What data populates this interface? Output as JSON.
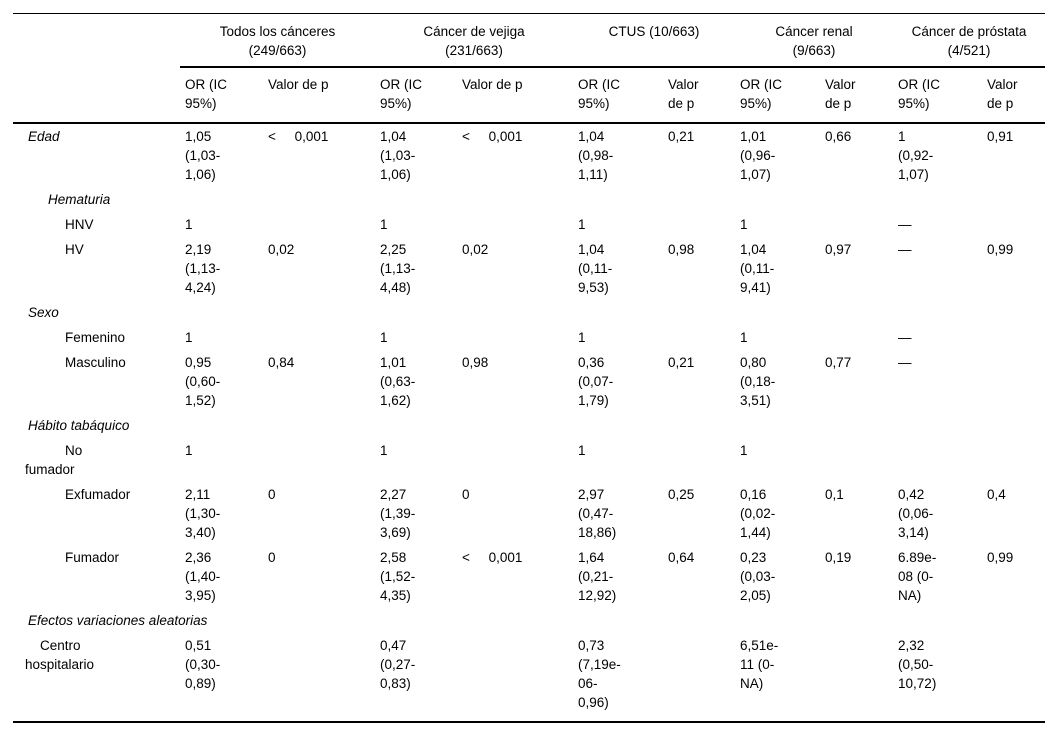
{
  "table": {
    "groups": [
      {
        "label": "Todos los cánceres\n(249/663)",
        "or_header": "OR (IC\n95%)",
        "p_header": "Valor de p"
      },
      {
        "label": "Cáncer de vejiga\n(231/663)",
        "or_header": "OR (IC\n95%)",
        "p_header": "Valor de p"
      },
      {
        "label": "CTUS (10/663)",
        "or_header": "OR (IC\n95%)",
        "p_header": "Valor\nde p"
      },
      {
        "label": "Cáncer renal\n(9/663)",
        "or_header": "OR (IC\n95%)",
        "p_header": "Valor\nde p"
      },
      {
        "label": "Cáncer de próstata\n(4/521)",
        "or_header": "OR (IC\n95%)",
        "p_header": "Valor\nde p"
      }
    ],
    "rows": [
      {
        "label": "Edad",
        "label_style": "section",
        "cells": [
          "1,05\n(1,03-\n1,06)",
          "<     0,001",
          "1,04\n(1,03-\n1,06)",
          "<     0,001",
          "1,04\n(0,98-\n1,11)",
          "0,21",
          "1,01\n(0,96-\n1,07)",
          "0,66",
          "1\n(0,92-\n1,07)",
          "0,91"
        ]
      },
      {
        "label": "Hematuria",
        "label_style": "subsection",
        "cells": [
          "",
          "",
          "",
          "",
          "",
          "",
          "",
          "",
          "",
          ""
        ]
      },
      {
        "label": "HNV",
        "label_style": "item",
        "cells": [
          "1",
          "",
          "1",
          "",
          "1",
          "",
          "1",
          "",
          "—",
          ""
        ]
      },
      {
        "label": "HV",
        "label_style": "item",
        "cells": [
          "2,19\n(1,13-\n4,24)",
          "0,02",
          "2,25\n(1,13-\n4,48)",
          "0,02",
          "1,04\n(0,11-\n9,53)",
          "0,98",
          "1,04\n(0,11-\n9,41)",
          "0,97",
          "—",
          "0,99"
        ]
      },
      {
        "label": "Sexo",
        "label_style": "section",
        "cells": [
          "",
          "",
          "",
          "",
          "",
          "",
          "",
          "",
          "",
          ""
        ]
      },
      {
        "label": "Femenino",
        "label_style": "item",
        "cells": [
          "1",
          "",
          "1",
          "",
          "1",
          "",
          "1",
          "",
          "—",
          ""
        ]
      },
      {
        "label": "Masculino",
        "label_style": "item",
        "cells": [
          "0,95\n(0,60-\n1,52)",
          "0,84",
          "1,01\n(0,63-\n1,62)",
          "0,98",
          "0,36\n(0,07-\n1,79)",
          "0,21",
          "0,80\n(0,18-\n3,51)",
          "0,77",
          "—",
          ""
        ]
      },
      {
        "label": "Hábito tabáquico",
        "label_style": "section",
        "cells": [
          "",
          "",
          "",
          "",
          "",
          "",
          "",
          "",
          "",
          ""
        ]
      },
      {
        "label": "No\nfumador",
        "label_style": "item-wrap-a",
        "cells": [
          "1",
          "",
          "1",
          "",
          "1",
          "",
          "1",
          "",
          "",
          ""
        ]
      },
      {
        "label": "Exfumador",
        "label_style": "item",
        "cells": [
          "2,11\n(1,30-\n3,40)",
          "0",
          "2,27\n(1,39-\n3,69)",
          "0",
          "2,97\n(0,47-\n18,86)",
          "0,25",
          "0,16\n(0,02-\n1,44)",
          "0,1",
          "0,42\n(0,06-\n3,14)",
          "0,4"
        ]
      },
      {
        "label": "Fumador",
        "label_style": "item",
        "cells": [
          "2,36\n(1,40-\n3,95)",
          "0",
          "2,58\n(1,52-\n4,35)",
          "<     0,001",
          "1,64\n(0,21-\n12,92)",
          "0,64",
          "0,23\n(0,03-\n2,05)",
          "0,19",
          "6.89e-\n08 (0-\nNA)",
          "0,99"
        ]
      },
      {
        "label": "Efectos variaciones aleatorias",
        "label_style": "section",
        "cells": [
          "",
          "",
          "",
          "",
          "",
          "",
          "",
          "",
          "",
          ""
        ]
      },
      {
        "label": "Centro\nhospitalario",
        "label_style": "item-wrap-b",
        "cells": [
          "0,51\n(0,30-\n0,89)",
          "",
          "0,47\n(0,27-\n0,83)",
          "",
          "0,73\n(7,19e-\n06-\n0,96)",
          "",
          "6,51e-\n11 (0-\nNA)",
          "",
          "2,32\n(0,50-\n10,72)",
          ""
        ]
      }
    ]
  }
}
